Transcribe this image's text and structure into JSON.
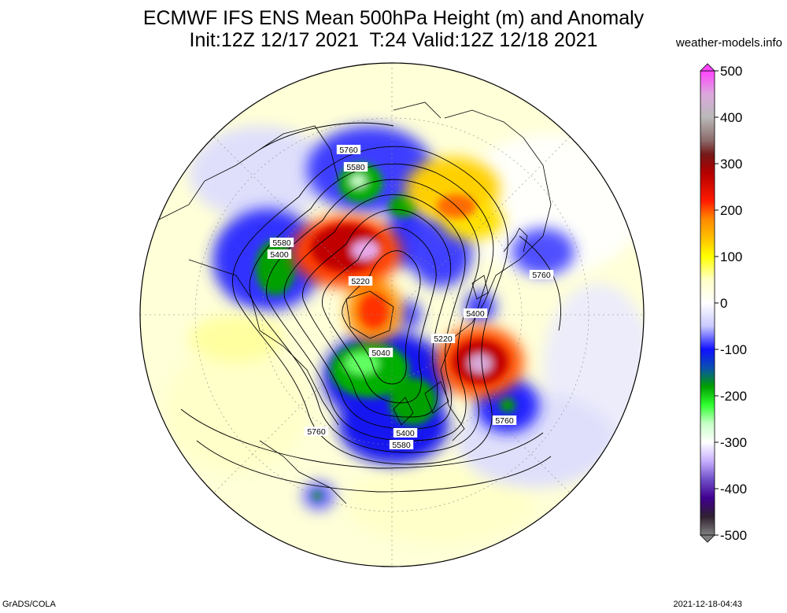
{
  "title": {
    "line1": "ECMWF IFS ENS Mean 500hPa Height (m) and Anomaly",
    "line2": "Init:12Z 12/17 2021  T:24 Valid:12Z 12/18 2021"
  },
  "source": "weather-models.info",
  "footer": {
    "software": "GrADS/COLA",
    "timestamp": "2021-12-18-04:43"
  },
  "colorbar": {
    "ticks": [
      "500",
      "400",
      "300",
      "200",
      "100",
      "0",
      "-100",
      "-200",
      "-300",
      "-400",
      "-500"
    ],
    "stops": [
      {
        "value": 500,
        "color": "#ff44ff"
      },
      {
        "value": 450,
        "color": "#dca8dc"
      },
      {
        "value": 400,
        "color": "#b9b9b9"
      },
      {
        "value": 350,
        "color": "#8c6b6b"
      },
      {
        "value": 320,
        "color": "#741818"
      },
      {
        "value": 280,
        "color": "#b40000"
      },
      {
        "value": 220,
        "color": "#ff1a00"
      },
      {
        "value": 180,
        "color": "#ff8a00"
      },
      {
        "value": 140,
        "color": "#ffc000"
      },
      {
        "value": 100,
        "color": "#ffff00"
      },
      {
        "value": 50,
        "color": "#ffffc8"
      },
      {
        "value": 0,
        "color": "#ffffff"
      },
      {
        "value": -50,
        "color": "#c8c8ff"
      },
      {
        "value": -100,
        "color": "#1010ff"
      },
      {
        "value": -140,
        "color": "#0a50b0"
      },
      {
        "value": -180,
        "color": "#00a000"
      },
      {
        "value": -220,
        "color": "#30ff30"
      },
      {
        "value": -260,
        "color": "#c8ffc8"
      },
      {
        "value": -300,
        "color": "#ffffff"
      },
      {
        "value": -340,
        "color": "#c8b0ff"
      },
      {
        "value": -380,
        "color": "#7050c8"
      },
      {
        "value": -420,
        "color": "#400090"
      },
      {
        "value": -460,
        "color": "#302030"
      },
      {
        "value": -500,
        "color": "#808080"
      }
    ]
  },
  "contour_labels": [
    "5760",
    "5580",
    "5580",
    "5400",
    "5220",
    "5040",
    "5400",
    "5580",
    "5760",
    "5760",
    "5400",
    "5220",
    "5760"
  ],
  "colors": {
    "land_outline": "#000000",
    "contour": "#000000",
    "background_positive": "#ffffc8",
    "anomaly_ridge": "#ff1a00",
    "anomaly_trough": "#1010ff",
    "anomaly_deep_trough": "#00a000"
  }
}
